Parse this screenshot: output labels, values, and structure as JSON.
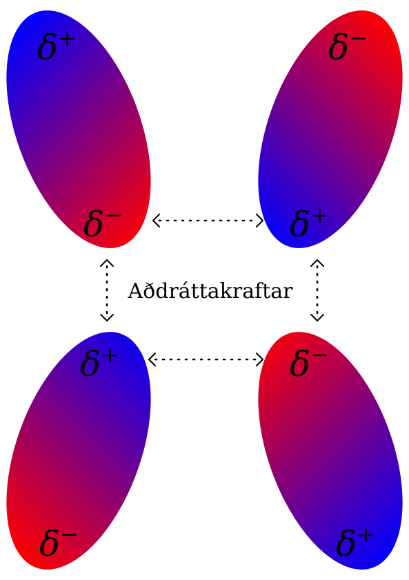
{
  "caption": "Aðdráttakraftar",
  "charge_symbol": "δ",
  "sign_plus": "+",
  "sign_minus": "−",
  "colors": {
    "positive": "#0000ff",
    "negative": "#ff0000",
    "arrow": "#000000",
    "background": "#ffffff"
  },
  "molecules": [
    {
      "id": "top-left",
      "top_charge": "+",
      "bottom_charge": "−"
    },
    {
      "id": "top-right",
      "top_charge": "−",
      "bottom_charge": "+"
    },
    {
      "id": "bottom-left",
      "top_charge": "+",
      "bottom_charge": "−"
    },
    {
      "id": "bottom-right",
      "top_charge": "−",
      "bottom_charge": "+"
    }
  ],
  "arrows": [
    {
      "id": "top-horizontal",
      "style": "dotted",
      "heads": "both"
    },
    {
      "id": "bottom-horizontal",
      "style": "dotted",
      "heads": "both"
    },
    {
      "id": "left-vertical",
      "style": "dotted",
      "heads": "both"
    },
    {
      "id": "right-vertical",
      "style": "dotted",
      "heads": "both"
    }
  ]
}
